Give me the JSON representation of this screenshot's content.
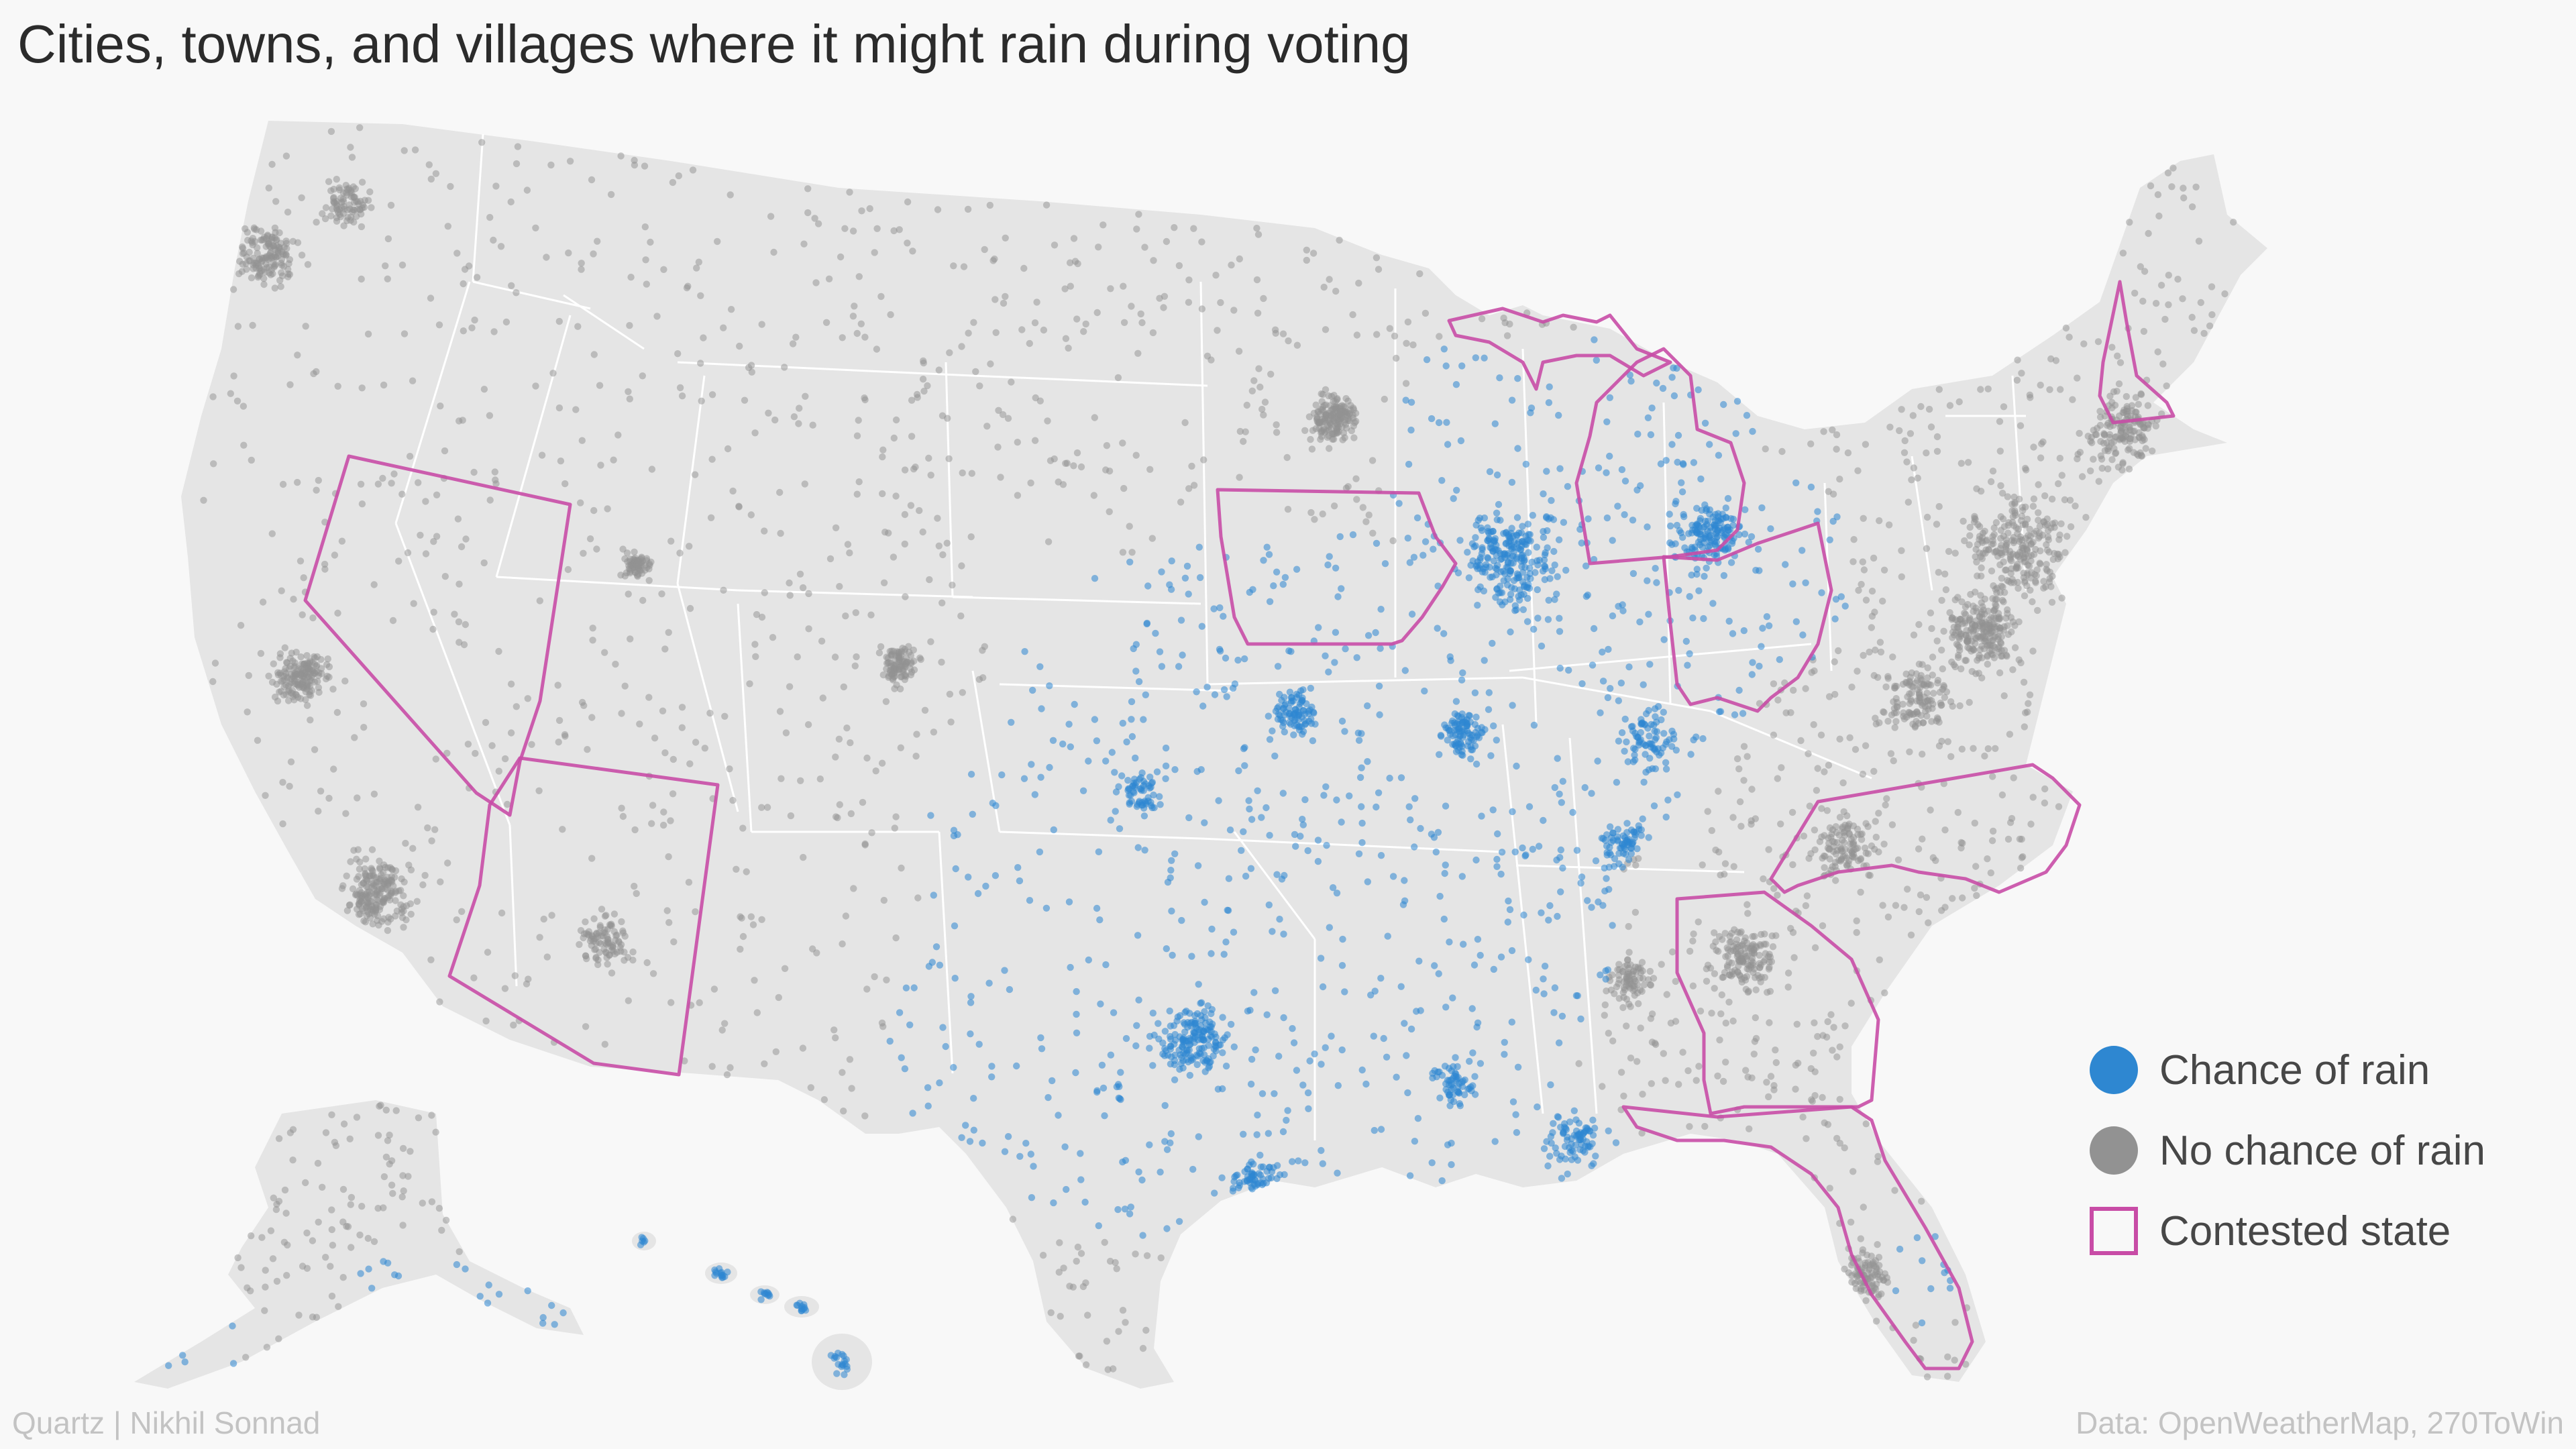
{
  "title": "Cities, towns, and villages where it might rain during voting",
  "legend": {
    "items": [
      {
        "label": "Chance of rain",
        "swatch": "circle",
        "color": "#2e87d1"
      },
      {
        "label": "No chance of rain",
        "swatch": "circle",
        "color": "#929292"
      },
      {
        "label": "Contested state",
        "swatch": "square-outline",
        "color": "#c84ca6"
      }
    ]
  },
  "footer": {
    "credit": "Quartz | Nikhil Sonnad",
    "source": "Data: OpenWeatherMap, 270ToWin"
  },
  "colors": {
    "background": "#f8f8f8",
    "land": "#e5e5e5",
    "state_border": "#ffffff",
    "rain_dot": "#2e87d1",
    "no_rain_dot": "#929292",
    "contested_outline": "#c84ca6"
  },
  "map": {
    "projection": "Albers USA (contiguous US, Alaska and Hawaii insets)",
    "contested_states": [
      "Nevada",
      "Arizona",
      "Iowa",
      "Michigan",
      "Ohio",
      "New Hampshire",
      "North Carolina",
      "Georgia",
      "Florida"
    ],
    "rain_regions": [
      "Great Plains",
      "Midwest",
      "Texas",
      "Gulf Coast",
      "Michigan",
      "Ohio",
      "Hawaii",
      "Southern Alaska"
    ]
  }
}
